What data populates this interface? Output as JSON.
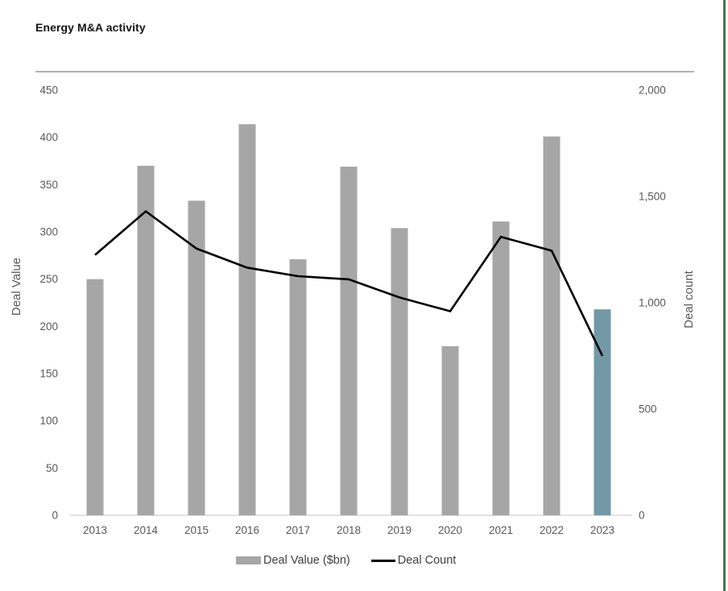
{
  "page": {
    "title": "Energy M&A activity",
    "accent_border_color": "#4a7350",
    "rule_color": "#b1b1b1"
  },
  "chart_data": {
    "type": "combo_bar_line",
    "title": "Energy M&A activity",
    "categories": [
      "2013",
      "2014",
      "2015",
      "2016",
      "2017",
      "2018",
      "2019",
      "2020",
      "2021",
      "2022",
      "2023"
    ],
    "series": [
      {
        "name": "Deal Value ($bn)",
        "type": "bar",
        "axis": "left",
        "values": [
          250,
          370,
          333,
          414,
          271,
          369,
          304,
          179,
          311,
          401,
          218
        ],
        "color": "#a6a6a6",
        "highlight": {
          "index": 10,
          "color": "#7398a6"
        }
      },
      {
        "name": "Deal Count",
        "type": "line",
        "axis": "right",
        "values": [
          1225,
          1430,
          1255,
          1165,
          1125,
          1110,
          1025,
          960,
          1310,
          1245,
          750
        ],
        "color": "#000000"
      }
    ],
    "left_axis": {
      "title": "Deal Value",
      "range": [
        0,
        450
      ],
      "ticks": [
        "0",
        "50",
        "100",
        "150",
        "200",
        "250",
        "300",
        "350",
        "400",
        "450"
      ]
    },
    "right_axis": {
      "title": "Deal count",
      "range": [
        0,
        2000
      ],
      "ticks": [
        "0",
        "500",
        "1,000",
        "1,500",
        "2,000"
      ]
    },
    "axis_line_color": "#d9d9d9",
    "tick_color": "#595959",
    "legend": [
      {
        "label": "Deal Value ($bn)",
        "swatch": "bar",
        "color": "#a6a6a6"
      },
      {
        "label": "Deal Count",
        "swatch": "line",
        "color": "#000000"
      }
    ],
    "legend_position": "bottom",
    "grid": false
  }
}
